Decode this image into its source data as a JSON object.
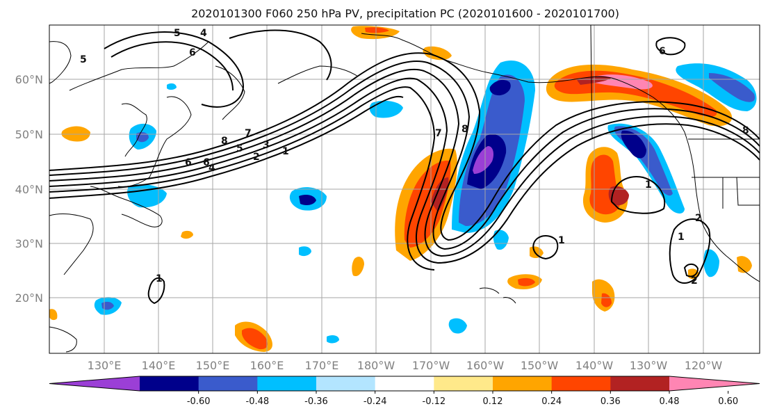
{
  "title": "2020101300 F060 250 hPa PV, precipitation PC (2020101600 - 2020101700)",
  "axes": {
    "lat_labels": [
      "60°N",
      "50°N",
      "40°N",
      "30°N",
      "20°N"
    ],
    "lon_labels": [
      "130°E",
      "140°E",
      "150°E",
      "160°E",
      "170°E",
      "180°W",
      "170°W",
      "160°W",
      "150°W",
      "140°W",
      "130°W",
      "120°W"
    ]
  },
  "colorbar": {
    "colors": [
      "#9b3fd6",
      "#00008b",
      "#3a5bcc",
      "#00bfff",
      "#b3e5ff",
      "#ffffff",
      "#ffe98a",
      "#ffa500",
      "#ff4500",
      "#b22222",
      "#ff85b3"
    ],
    "tick_labels": [
      "-0.60",
      "-0.48",
      "-0.36",
      "-0.24",
      "-0.12",
      "0.12",
      "0.24",
      "0.36",
      "0.48",
      "0.60"
    ]
  },
  "pv_contour_labels": [
    "5",
    "4",
    "6",
    "5",
    "6",
    "8",
    "7",
    "5",
    "3",
    "2",
    "1",
    "6",
    "4",
    "7",
    "8",
    "1",
    "2",
    "1",
    "1",
    "2",
    "1",
    "6",
    "8"
  ],
  "colors": {
    "grid": "#a6a6a6",
    "coast": "#000000",
    "contour": "#000000"
  }
}
